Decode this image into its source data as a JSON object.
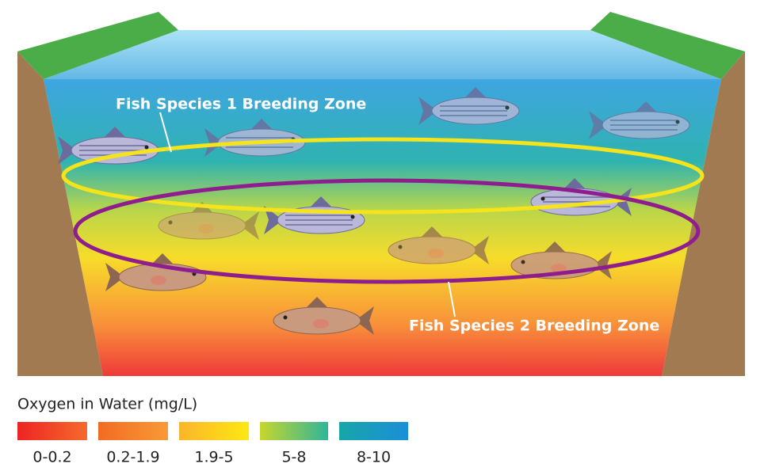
{
  "zones": [
    {
      "label": "Fish Species 1 Breeding Zone"
    },
    {
      "label": "Fish Species 2 Breeding Zone"
    }
  ],
  "legend": {
    "title": "Oxygen in Water (mg/L)",
    "items": [
      {
        "label": "0-0.2"
      },
      {
        "label": "0.2-1.9"
      },
      {
        "label": "1.9-5"
      },
      {
        "label": "5-8"
      },
      {
        "label": "8-10"
      }
    ]
  }
}
